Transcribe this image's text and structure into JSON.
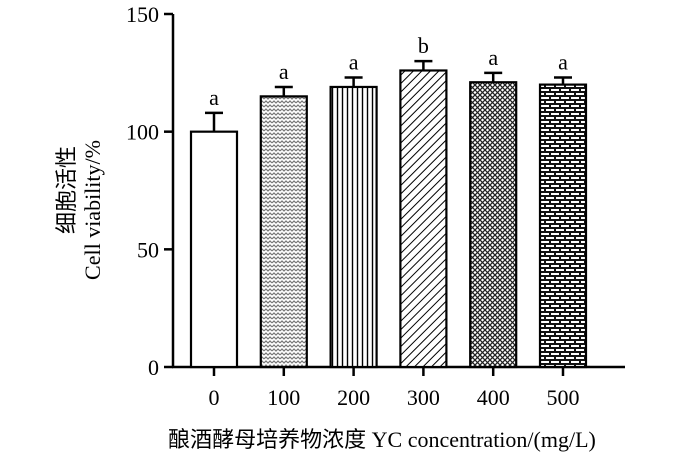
{
  "chart_data": {
    "type": "bar",
    "categories": [
      "0",
      "100",
      "200",
      "300",
      "400",
      "500"
    ],
    "values": [
      100,
      115,
      119,
      126,
      121,
      120
    ],
    "errors": [
      8,
      4,
      4,
      4,
      4,
      3
    ],
    "significance": [
      "a",
      "a",
      "a",
      "b",
      "a",
      "a"
    ],
    "patterns": [
      "none",
      "zigzag-dots",
      "vertical-lines",
      "diagonal-lines",
      "crosshatch",
      "brick"
    ],
    "xlabel": "酿酒酵母培养物浓度 YC concentration/(mg/L)",
    "ylabel_cn": "细胞活性",
    "ylabel_en": "Cell viability/%",
    "ylim": [
      0,
      150
    ],
    "yticks": [
      0,
      50,
      100,
      150
    ],
    "grid": false
  }
}
